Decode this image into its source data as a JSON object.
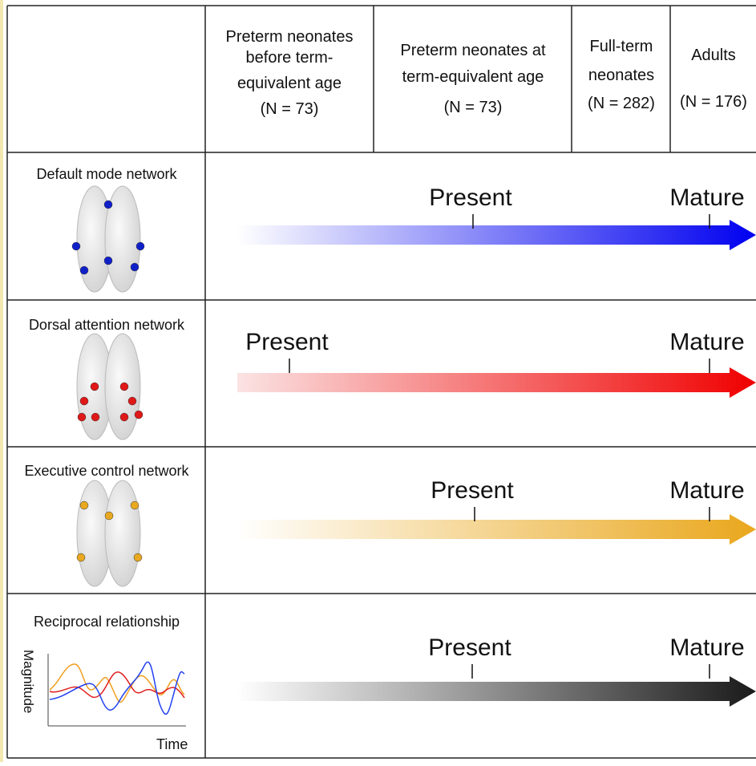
{
  "header": {
    "columns": [
      {
        "lines": [
          "Preterm neonates",
          "before term-",
          "equivalent age",
          "(N = 73)"
        ]
      },
      {
        "lines": [
          "Preterm neonates at",
          "term-equivalent age",
          "(N = 73)"
        ]
      },
      {
        "lines": [
          "Full-term",
          "neonates",
          "(N = 282)"
        ]
      },
      {
        "lines": [
          "Adults",
          "(N = 176)"
        ]
      }
    ]
  },
  "rows": [
    {
      "label": "Default mode network",
      "present": "Present",
      "mature": "Mature"
    },
    {
      "label": "Dorsal attention network",
      "present": "Present",
      "mature": "Mature"
    },
    {
      "label": "Executive control network",
      "present": "Present",
      "mature": "Mature"
    },
    {
      "label": "Reciprocal relationship",
      "present": "Present",
      "mature": "Mature",
      "y_axis": "Magnitude",
      "x_axis": "Time"
    }
  ]
}
